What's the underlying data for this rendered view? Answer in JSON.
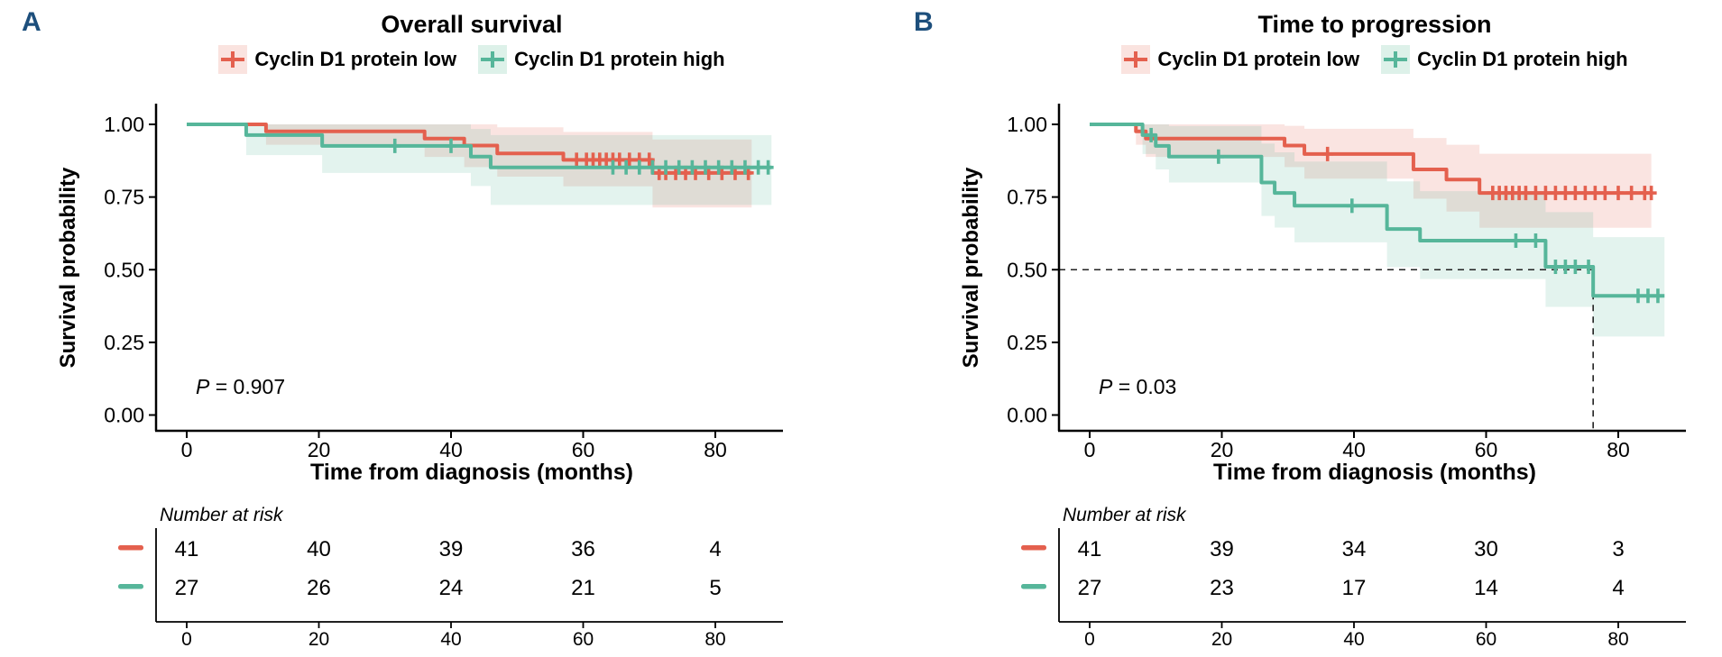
{
  "colors": {
    "low": "#E4604E",
    "high": "#56B69A",
    "low_key_bg": "#FAE3DF",
    "high_key_bg": "#DDF1E9",
    "panel_letter": "#1D4F7C",
    "dashed_line": "#222222",
    "axis": "#000000"
  },
  "chart_data": [
    {
      "type": "line",
      "subtype": "kaplan-meier",
      "letter": "A",
      "title": "Overall survival",
      "ylabel": "Survival probability",
      "xlabel": "Time from diagnosis (months)",
      "pvalue_prefix": "P",
      "pvalue_rest": " = 0.907",
      "xlim": [
        0,
        89
      ],
      "ylim": [
        0,
        1
      ],
      "grid": false,
      "legend_position": "top",
      "yticks": [
        {
          "label": "1.00",
          "p": 1.0
        },
        {
          "label": "0.75",
          "p": 0.75
        },
        {
          "label": "0.50",
          "p": 0.5
        },
        {
          "label": "0.25",
          "p": 0.25
        },
        {
          "label": "0.00",
          "p": 0.0
        }
      ],
      "xticks": [
        {
          "label": "0",
          "t": 0
        },
        {
          "label": "20",
          "t": 20
        },
        {
          "label": "40",
          "t": 40
        },
        {
          "label": "60",
          "t": 60
        },
        {
          "label": "80",
          "t": 80
        }
      ],
      "legend": [
        {
          "name": "Cyclin D1 protein low"
        },
        {
          "name": "Cyclin D1 protein high"
        }
      ],
      "series": [
        {
          "name": "Cyclin D1 protein low",
          "color_key": "low",
          "t_end": 85.5,
          "steps": [
            [
              0,
              1,
              1,
              1
            ],
            [
              12,
              0.976,
              1,
              0.93
            ],
            [
              36,
              0.951,
              1,
              0.888
            ],
            [
              42,
              0.927,
              1,
              0.853
            ],
            [
              47,
              0.9,
              0.99,
              0.82
            ],
            [
              57,
              0.878,
              0.974,
              0.787
            ],
            [
              70.5,
              0.833,
              0.948,
              0.714
            ]
          ],
          "censors": [
            [
              59,
              0.878
            ],
            [
              60.5,
              0.878
            ],
            [
              61.5,
              0.878
            ],
            [
              62.5,
              0.878
            ],
            [
              63.5,
              0.878
            ],
            [
              64.5,
              0.878
            ],
            [
              65.5,
              0.878
            ],
            [
              67,
              0.878
            ],
            [
              68.5,
              0.878
            ],
            [
              70,
              0.878
            ],
            [
              71.5,
              0.833
            ],
            [
              72.5,
              0.833
            ],
            [
              74,
              0.833
            ],
            [
              75.5,
              0.833
            ],
            [
              77,
              0.833
            ],
            [
              79,
              0.833
            ],
            [
              81,
              0.833
            ],
            [
              83,
              0.833
            ],
            [
              85,
              0.833
            ]
          ]
        },
        {
          "name": "Cyclin D1 protein high",
          "color_key": "high",
          "t_end": 88.5,
          "steps": [
            [
              0,
              1,
              1,
              1
            ],
            [
              9,
              0.963,
              1,
              0.894
            ],
            [
              20.5,
              0.926,
              1,
              0.833
            ],
            [
              43,
              0.889,
              0.984,
              0.788
            ],
            [
              46,
              0.852,
              0.963,
              0.723
            ]
          ],
          "censors": [
            [
              31.5,
              0.926
            ],
            [
              40,
              0.926
            ],
            [
              64.5,
              0.852
            ],
            [
              66.5,
              0.852
            ],
            [
              68.5,
              0.852
            ],
            [
              70.5,
              0.852
            ],
            [
              72.5,
              0.852
            ],
            [
              74.5,
              0.852
            ],
            [
              76.5,
              0.852
            ],
            [
              78.5,
              0.852
            ],
            [
              80.5,
              0.852
            ],
            [
              82.5,
              0.852
            ],
            [
              84.5,
              0.852
            ],
            [
              86.5,
              0.852
            ],
            [
              88,
              0.852
            ]
          ]
        }
      ],
      "median_lines": null,
      "risk_table": {
        "header": "Number at risk",
        "rows": [
          {
            "color_key": "low",
            "counts": [
              "41",
              "40",
              "39",
              "36",
              "4"
            ]
          },
          {
            "color_key": "high",
            "counts": [
              "27",
              "26",
              "24",
              "21",
              "5"
            ]
          }
        ]
      }
    },
    {
      "type": "line",
      "subtype": "kaplan-meier",
      "letter": "B",
      "title": "Time to progression",
      "ylabel": "Survival probability",
      "xlabel": "Time from diagnosis (months)",
      "pvalue_prefix": "P",
      "pvalue_rest": " = 0.03",
      "xlim": [
        0,
        89
      ],
      "ylim": [
        0,
        1
      ],
      "grid": false,
      "legend_position": "top",
      "yticks": [
        {
          "label": "1.00",
          "p": 1.0
        },
        {
          "label": "0.75",
          "p": 0.75
        },
        {
          "label": "0.50",
          "p": 0.5
        },
        {
          "label": "0.25",
          "p": 0.25
        },
        {
          "label": "0.00",
          "p": 0.0
        }
      ],
      "xticks": [
        {
          "label": "0",
          "t": 0
        },
        {
          "label": "20",
          "t": 20
        },
        {
          "label": "40",
          "t": 40
        },
        {
          "label": "60",
          "t": 60
        },
        {
          "label": "80",
          "t": 80
        }
      ],
      "legend": [
        {
          "name": "Cyclin D1 protein low"
        },
        {
          "name": "Cyclin D1 protein high"
        }
      ],
      "series": [
        {
          "name": "Cyclin D1 protein low",
          "color_key": "low",
          "t_end": 85,
          "steps": [
            [
              0,
              1,
              1,
              1
            ],
            [
              7,
              0.976,
              1,
              0.93
            ],
            [
              8.5,
              0.951,
              1,
              0.888
            ],
            [
              29.5,
              0.927,
              0.995,
              0.853
            ],
            [
              32.5,
              0.898,
              0.985,
              0.813
            ],
            [
              49,
              0.845,
              0.953,
              0.744
            ],
            [
              54,
              0.81,
              0.93,
              0.7
            ],
            [
              59,
              0.764,
              0.899,
              0.644
            ]
          ],
          "censors": [
            [
              36,
              0.898
            ],
            [
              61,
              0.764
            ],
            [
              62,
              0.764
            ],
            [
              63,
              0.764
            ],
            [
              64,
              0.764
            ],
            [
              65,
              0.764
            ],
            [
              66,
              0.764
            ],
            [
              67.5,
              0.764
            ],
            [
              69,
              0.764
            ],
            [
              70.5,
              0.764
            ],
            [
              72,
              0.764
            ],
            [
              73.5,
              0.764
            ],
            [
              75,
              0.764
            ],
            [
              76.5,
              0.764
            ],
            [
              78,
              0.764
            ],
            [
              80,
              0.764
            ],
            [
              82,
              0.764
            ],
            [
              84,
              0.764
            ],
            [
              85,
              0.764
            ]
          ]
        },
        {
          "name": "Cyclin D1 protein high",
          "color_key": "high",
          "t_end": 87,
          "steps": [
            [
              0,
              1,
              1,
              1
            ],
            [
              8,
              0.963,
              1,
              0.898
            ],
            [
              10,
              0.926,
              1,
              0.845
            ],
            [
              12,
              0.889,
              0.994,
              0.8
            ],
            [
              26,
              0.8,
              0.934,
              0.685
            ],
            [
              28,
              0.764,
              0.904,
              0.645
            ],
            [
              31,
              0.72,
              0.872,
              0.594
            ],
            [
              45,
              0.64,
              0.804,
              0.509
            ],
            [
              50,
              0.6,
              0.77,
              0.468
            ],
            [
              69,
              0.51,
              0.698,
              0.372
            ],
            [
              76.2,
              0.41,
              0.612,
              0.27
            ]
          ],
          "censors": [
            [
              9.3,
              0.963
            ],
            [
              19.5,
              0.889
            ],
            [
              39.7,
              0.72
            ],
            [
              64.5,
              0.6
            ],
            [
              67.5,
              0.6
            ],
            [
              70.5,
              0.51
            ],
            [
              72,
              0.51
            ],
            [
              73.5,
              0.51
            ],
            [
              75.5,
              0.51
            ],
            [
              83,
              0.41
            ],
            [
              84.5,
              0.41
            ],
            [
              86,
              0.41
            ]
          ]
        }
      ],
      "median_lines": {
        "t": 76.2,
        "p": 0.5
      },
      "risk_table": {
        "header": "Number at risk",
        "rows": [
          {
            "color_key": "low",
            "counts": [
              "41",
              "39",
              "34",
              "30",
              "3"
            ]
          },
          {
            "color_key": "high",
            "counts": [
              "27",
              "23",
              "17",
              "14",
              "4"
            ]
          }
        ]
      }
    }
  ]
}
